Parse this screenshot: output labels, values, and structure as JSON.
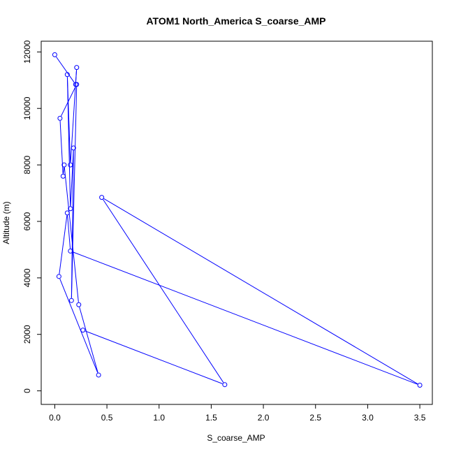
{
  "chart_data": {
    "type": "line",
    "title": "ATOM1 North_America S_coarse_AMP",
    "xlabel": "S_coarse_AMP",
    "ylabel": "Altitude (m)",
    "xlim": [
      -0.13,
      3.62
    ],
    "ylim": [
      -480,
      12380
    ],
    "x_ticks": [
      0.0,
      0.5,
      1.0,
      1.5,
      2.0,
      2.5,
      3.0,
      3.5
    ],
    "x_tick_labels": [
      "0.0",
      "0.5",
      "1.0",
      "1.5",
      "2.0",
      "2.5",
      "3.0",
      "3.5"
    ],
    "y_ticks": [
      0,
      2000,
      4000,
      6000,
      8000,
      10000,
      12000
    ],
    "y_tick_labels": [
      "0",
      "2000",
      "4000",
      "6000",
      "8000",
      "10000",
      "12000"
    ],
    "grid": false,
    "series": [
      {
        "color": "#0000ff",
        "marker": "open-circle",
        "points": [
          {
            "x": 0.0,
            "y": 11900
          },
          {
            "x": 0.2,
            "y": 10850
          },
          {
            "x": 0.21,
            "y": 11450
          },
          {
            "x": 0.15,
            "y": 8000
          },
          {
            "x": 0.12,
            "y": 11200
          },
          {
            "x": 0.15,
            "y": 6450
          },
          {
            "x": 0.18,
            "y": 8600
          },
          {
            "x": 0.16,
            "y": 3200
          },
          {
            "x": 0.21,
            "y": 10850
          },
          {
            "x": 0.05,
            "y": 9650
          },
          {
            "x": 0.08,
            "y": 7600
          },
          {
            "x": 0.09,
            "y": 8000
          },
          {
            "x": 0.23,
            "y": 3050
          },
          {
            "x": 0.42,
            "y": 560
          },
          {
            "x": 0.04,
            "y": 4050
          },
          {
            "x": 0.12,
            "y": 6300
          },
          {
            "x": 0.15,
            "y": 4950
          },
          {
            "x": 3.5,
            "y": 200
          },
          {
            "x": 0.45,
            "y": 6850
          },
          {
            "x": 1.63,
            "y": 220
          },
          {
            "x": 0.27,
            "y": 2150
          }
        ]
      }
    ]
  }
}
